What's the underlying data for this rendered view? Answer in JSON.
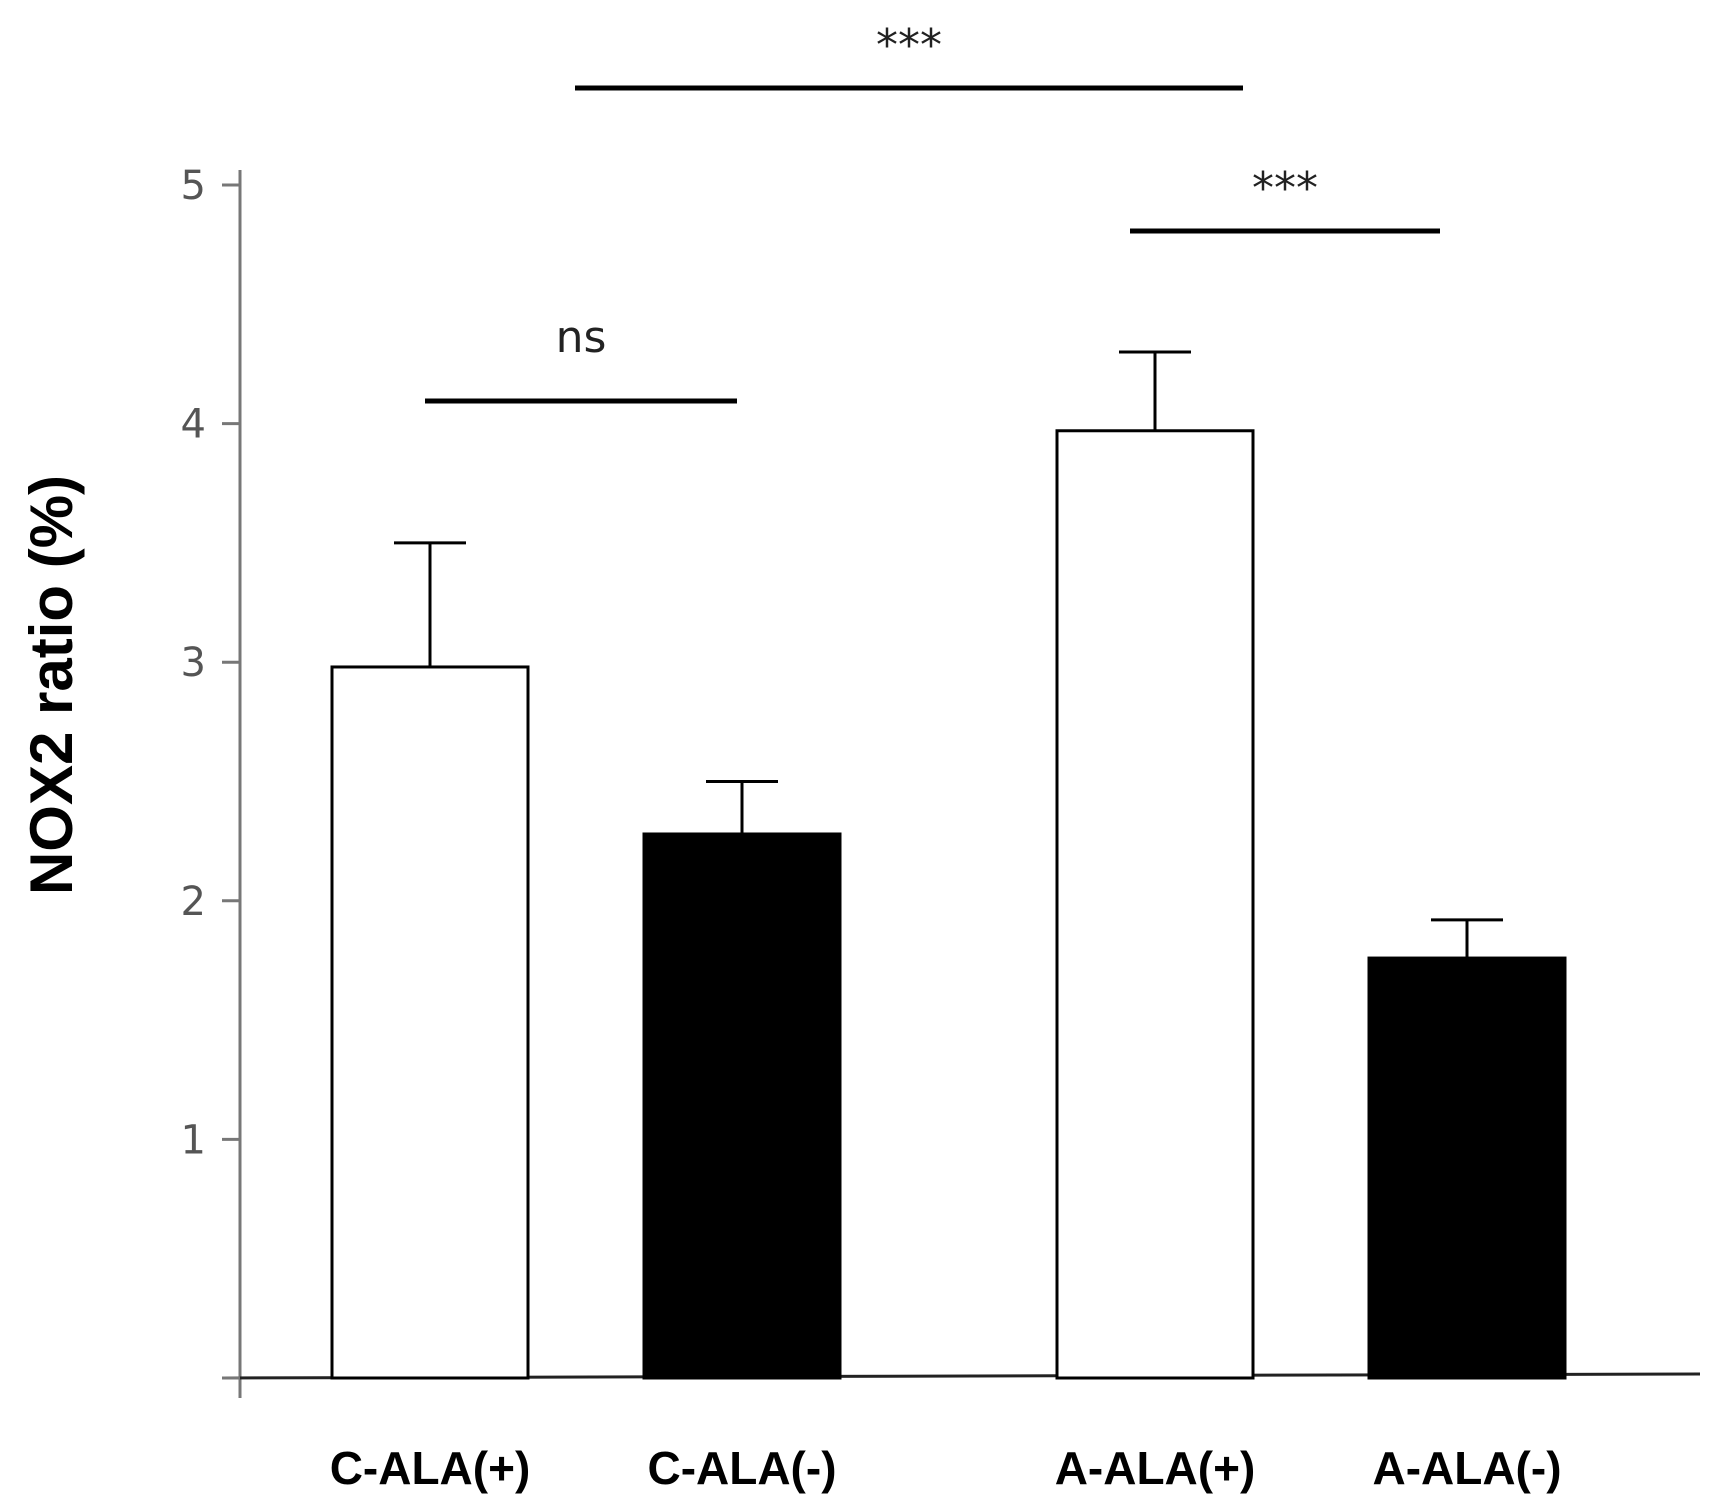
{
  "chart_data": {
    "type": "bar",
    "title": "",
    "xlabel": "",
    "ylabel": "NOX2 ratio (%)",
    "ylim": [
      0,
      5
    ],
    "yticks": [
      1,
      2,
      3,
      4,
      5
    ],
    "grid": false,
    "categories": [
      "C-ALA(+)",
      "C-ALA(-)",
      "A-ALA(+)",
      "A-ALA(-)"
    ],
    "values": [
      2.98,
      2.28,
      3.97,
      1.76
    ],
    "errors": [
      0.52,
      0.22,
      0.33,
      0.16
    ],
    "bar_fills": [
      "#ffffff",
      "#000000",
      "#ffffff",
      "#000000"
    ],
    "significance": [
      {
        "from": 0,
        "to": 1,
        "label": "ns",
        "y": 4.1
      },
      {
        "from": 2,
        "to": 3,
        "label": "***",
        "y": 4.9
      },
      {
        "from": 0,
        "to": 3,
        "label": "***",
        "y": 5.8
      }
    ]
  }
}
